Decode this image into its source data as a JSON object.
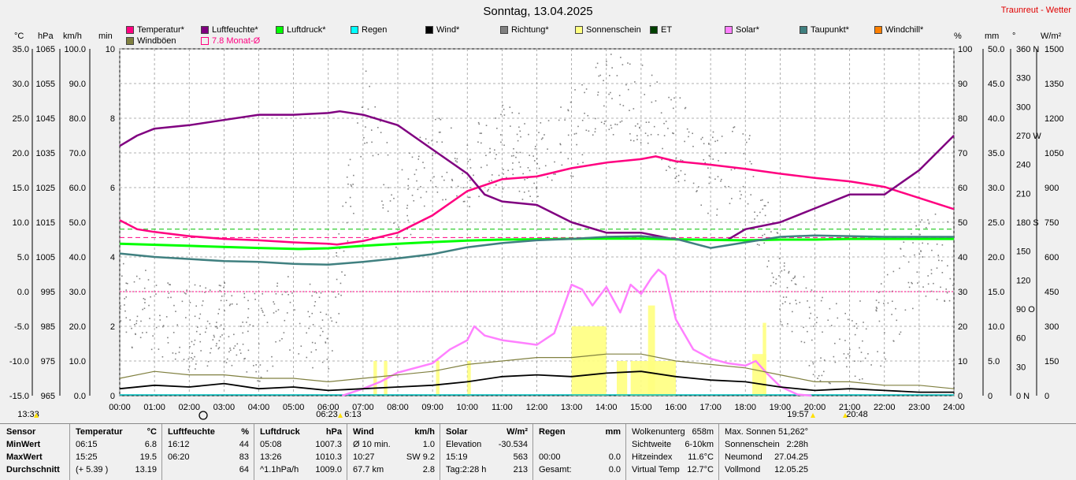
{
  "title": "Sonntag, 13.04.2025",
  "brand": "Traunreut - Wetter",
  "legend": [
    {
      "label": "Temperatur*",
      "color": "#ff0080"
    },
    {
      "label": "Luftfeuchte*",
      "color": "#800080"
    },
    {
      "label": "Luftdruck*",
      "color": "#00ff00"
    },
    {
      "label": "Regen",
      "color": "#00ffff"
    },
    {
      "label": "Wind*",
      "color": "#000000"
    },
    {
      "label": "Richtung*",
      "color": "#808080"
    },
    {
      "label": "Sonnenschein",
      "color": "#ffff80"
    },
    {
      "label": "ET",
      "color": "#004000"
    },
    {
      "label": "Solar*",
      "color": "#ff80ff"
    },
    {
      "label": "Taupunkt*",
      "color": "#408080"
    },
    {
      "label": "Windchill*",
      "color": "#ff8000"
    },
    {
      "label": "Windböen",
      "color": "#808040"
    },
    {
      "label": "7.8 Monat-Ø",
      "color": "#ff0080"
    }
  ],
  "units_left": [
    "°C",
    "hPa",
    "km/h",
    "min"
  ],
  "units_right": [
    "%",
    "mm",
    "°",
    "W/m²"
  ],
  "chart_data": {
    "type": "line",
    "x_unit": "hour",
    "x_range": [
      0,
      24
    ],
    "x_ticks": [
      "00:00",
      "01:00",
      "02:00",
      "03:00",
      "04:00",
      "05:00",
      "06:00",
      "07:00",
      "08:00",
      "09:00",
      "10:00",
      "11:00",
      "12:00",
      "13:00",
      "14:00",
      "15:00",
      "16:00",
      "17:00",
      "18:00",
      "19:00",
      "20:00",
      "21:00",
      "22:00",
      "23:00",
      "24:00"
    ],
    "axes": {
      "temperature": {
        "unit": "°C",
        "range": [
          -15,
          35
        ],
        "ticks": [
          "35.0",
          "30.0",
          "25.0",
          "20.0",
          "15.0",
          "10.0",
          "5.0",
          "0.0",
          "-5.0",
          "-10.0",
          "-15.0"
        ]
      },
      "pressure": {
        "unit": "hPa",
        "range": [
          965,
          1065
        ],
        "ticks": [
          "1065",
          "1055",
          "1045",
          "1035",
          "1025",
          "1015",
          "1005",
          "995",
          "985",
          "975",
          "965"
        ]
      },
      "wind": {
        "unit": "km/h",
        "range": [
          0,
          100
        ],
        "ticks": [
          "100.0",
          "90.0",
          "80.0",
          "70.0",
          "60.0",
          "50.0",
          "40.0",
          "30.0",
          "20.0",
          "10.0",
          "0.0"
        ]
      },
      "sunshine": {
        "unit": "min",
        "range": [
          0,
          10
        ],
        "ticks": [
          "10",
          "",
          "8",
          "",
          "6",
          "",
          "4",
          "",
          "2",
          "",
          "0"
        ]
      },
      "humidity": {
        "unit": "%",
        "range": [
          0,
          100
        ],
        "ticks": [
          "100",
          "90",
          "80",
          "70",
          "60",
          "50",
          "40",
          "30",
          "20",
          "10",
          "0"
        ]
      },
      "rain": {
        "unit": "mm",
        "range": [
          0,
          50
        ],
        "ticks": [
          "50.0",
          "45.0",
          "40.0",
          "35.0",
          "30.0",
          "25.0",
          "20.0",
          "15.0",
          "10.0",
          "5.0",
          "0"
        ]
      },
      "direction": {
        "unit": "°",
        "range": [
          0,
          360
        ],
        "ticks": [
          "360 N",
          "330",
          "300",
          "270 W",
          "240",
          "210",
          "180 S",
          "150",
          "120",
          "90 O",
          "60",
          "30",
          "0 N"
        ]
      },
      "solar": {
        "unit": "W/m²",
        "range": [
          0,
          1500
        ],
        "ticks": [
          "1500",
          "1350",
          "1200",
          "1050",
          "900",
          "750",
          "600",
          "450",
          "300",
          "150",
          "0"
        ]
      }
    },
    "series": [
      {
        "name": "Temperatur*",
        "axis": "temperature",
        "color": "#ff0080",
        "points": [
          [
            0,
            10.3
          ],
          [
            0.5,
            9.0
          ],
          [
            1,
            8.6
          ],
          [
            2,
            8.0
          ],
          [
            3,
            7.6
          ],
          [
            4,
            7.4
          ],
          [
            5,
            7.1
          ],
          [
            6,
            6.9
          ],
          [
            6.25,
            6.8
          ],
          [
            7,
            7.3
          ],
          [
            8,
            8.5
          ],
          [
            9,
            11.0
          ],
          [
            10,
            14.5
          ],
          [
            11,
            16.2
          ],
          [
            12,
            16.6
          ],
          [
            13,
            17.8
          ],
          [
            14,
            18.6
          ],
          [
            15,
            19.1
          ],
          [
            15.42,
            19.5
          ],
          [
            16,
            18.8
          ],
          [
            17,
            18.3
          ],
          [
            18,
            17.7
          ],
          [
            19,
            17.0
          ],
          [
            20,
            16.4
          ],
          [
            21,
            15.9
          ],
          [
            22,
            15.1
          ],
          [
            23,
            13.5
          ],
          [
            24,
            11.9
          ]
        ]
      },
      {
        "name": "Luftfeuchte*",
        "axis": "humidity",
        "color": "#800080",
        "points": [
          [
            0,
            72
          ],
          [
            0.5,
            75
          ],
          [
            1,
            77
          ],
          [
            2,
            78
          ],
          [
            3,
            79.5
          ],
          [
            4,
            81
          ],
          [
            5,
            81
          ],
          [
            6,
            81.5
          ],
          [
            6.33,
            82
          ],
          [
            7,
            81
          ],
          [
            8,
            78
          ],
          [
            9,
            71
          ],
          [
            10,
            64
          ],
          [
            10.5,
            58
          ],
          [
            11,
            56
          ],
          [
            12,
            55
          ],
          [
            13,
            50
          ],
          [
            14,
            47
          ],
          [
            15,
            47
          ],
          [
            16,
            45
          ],
          [
            17,
            45
          ],
          [
            17.5,
            45
          ],
          [
            18,
            48
          ],
          [
            19,
            50
          ],
          [
            20,
            54
          ],
          [
            21,
            58
          ],
          [
            22,
            58
          ],
          [
            23,
            65
          ],
          [
            24,
            75
          ]
        ]
      },
      {
        "name": "Luftdruck*",
        "axis": "pressure",
        "color": "#00ff00",
        "points": [
          [
            0,
            1008.8
          ],
          [
            2,
            1008.2
          ],
          [
            4,
            1007.6
          ],
          [
            5.13,
            1007.3
          ],
          [
            6,
            1007.5
          ],
          [
            7,
            1008.2
          ],
          [
            8,
            1008.8
          ],
          [
            9,
            1009.3
          ],
          [
            10,
            1009.7
          ],
          [
            11,
            1010.0
          ],
          [
            12,
            1010.1
          ],
          [
            13.43,
            1010.3
          ],
          [
            14,
            1010.3
          ],
          [
            15,
            1010.3
          ],
          [
            16,
            1010.1
          ],
          [
            17,
            1009.9
          ],
          [
            18,
            1009.8
          ],
          [
            19,
            1010.0
          ],
          [
            20,
            1010.0
          ],
          [
            21,
            1010.2
          ],
          [
            22,
            1010.2
          ],
          [
            23,
            1010.2
          ],
          [
            24,
            1010.2
          ]
        ]
      },
      {
        "name": "Taupunkt*",
        "axis": "temperature",
        "color": "#408080",
        "points": [
          [
            0,
            5.5
          ],
          [
            1,
            5.0
          ],
          [
            2,
            4.7
          ],
          [
            3,
            4.4
          ],
          [
            4,
            4.3
          ],
          [
            5,
            4.0
          ],
          [
            6,
            3.9
          ],
          [
            7,
            4.3
          ],
          [
            8,
            4.8
          ],
          [
            9,
            5.4
          ],
          [
            10,
            6.4
          ],
          [
            11,
            7.0
          ],
          [
            12,
            7.4
          ],
          [
            13,
            7.6
          ],
          [
            14,
            7.9
          ],
          [
            15,
            8.0
          ],
          [
            16,
            7.6
          ],
          [
            17,
            6.3
          ],
          [
            18,
            7.1
          ],
          [
            19,
            7.9
          ],
          [
            20,
            8.1
          ],
          [
            21,
            8.0
          ],
          [
            22,
            7.9
          ],
          [
            23,
            7.9
          ],
          [
            24,
            7.9
          ]
        ]
      },
      {
        "name": "Solar*",
        "axis": "solar",
        "color": "#ff80ff",
        "points": [
          [
            6.4,
            0
          ],
          [
            7,
            30
          ],
          [
            7.5,
            60
          ],
          [
            8,
            100
          ],
          [
            8.5,
            120
          ],
          [
            9,
            140
          ],
          [
            9.5,
            200
          ],
          [
            10,
            240
          ],
          [
            10.2,
            300
          ],
          [
            10.5,
            260
          ],
          [
            11,
            240
          ],
          [
            11.5,
            230
          ],
          [
            12,
            220
          ],
          [
            12.5,
            270
          ],
          [
            13,
            480
          ],
          [
            13.3,
            460
          ],
          [
            13.6,
            390
          ],
          [
            14,
            470
          ],
          [
            14.4,
            360
          ],
          [
            14.7,
            480
          ],
          [
            15,
            440
          ],
          [
            15.3,
            510
          ],
          [
            15.5,
            545
          ],
          [
            15.7,
            520
          ],
          [
            16,
            330
          ],
          [
            16.5,
            200
          ],
          [
            17,
            160
          ],
          [
            17.5,
            140
          ],
          [
            18,
            130
          ],
          [
            18.3,
            150
          ],
          [
            18.6,
            100
          ],
          [
            19,
            40
          ],
          [
            19.5,
            5
          ],
          [
            19.9,
            0
          ]
        ]
      },
      {
        "name": "Wind*",
        "axis": "wind",
        "color": "#000000",
        "points": [
          [
            0,
            2.0
          ],
          [
            1,
            3.0
          ],
          [
            2,
            2.5
          ],
          [
            3,
            3.5
          ],
          [
            4,
            2.0
          ],
          [
            5,
            2.5
          ],
          [
            6,
            1.5
          ],
          [
            7,
            2.0
          ],
          [
            8,
            2.5
          ],
          [
            9,
            3.0
          ],
          [
            10,
            4.0
          ],
          [
            11,
            5.5
          ],
          [
            12,
            6.0
          ],
          [
            13,
            5.5
          ],
          [
            14,
            6.5
          ],
          [
            15,
            7.0
          ],
          [
            16,
            5.5
          ],
          [
            17,
            4.5
          ],
          [
            18,
            4.0
          ],
          [
            19,
            2.5
          ],
          [
            20,
            1.5
          ],
          [
            21,
            2.0
          ],
          [
            22,
            1.5
          ],
          [
            23,
            1.0
          ],
          [
            24,
            1.0
          ]
        ]
      },
      {
        "name": "Windböen",
        "axis": "wind",
        "color": "#808040",
        "points": [
          [
            0,
            5
          ],
          [
            1,
            7
          ],
          [
            2,
            6
          ],
          [
            3,
            6
          ],
          [
            4,
            5
          ],
          [
            5,
            5
          ],
          [
            6,
            4
          ],
          [
            7,
            5
          ],
          [
            8,
            6
          ],
          [
            9,
            7
          ],
          [
            10,
            9
          ],
          [
            11,
            10
          ],
          [
            12,
            11
          ],
          [
            13,
            11
          ],
          [
            14,
            12
          ],
          [
            15,
            12
          ],
          [
            16,
            10
          ],
          [
            17,
            9
          ],
          [
            18,
            8
          ],
          [
            19,
            6
          ],
          [
            20,
            4
          ],
          [
            21,
            4
          ],
          [
            22,
            3
          ],
          [
            23,
            3
          ],
          [
            24,
            2
          ]
        ]
      }
    ],
    "reference_lines": [
      {
        "label": "7.8 Monat-Ø",
        "axis": "temperature",
        "value": 7.8,
        "color": "#ff0080"
      },
      {
        "axis": "temperature",
        "value": 9.0,
        "color": "#00c000"
      },
      {
        "axis": "temperature",
        "value": 0.0,
        "color": "#ff0080"
      }
    ],
    "sunshine_bars": {
      "axis": "sunshine",
      "color": "#ffff80",
      "ranges": [
        [
          7.3,
          7.4,
          1.0
        ],
        [
          7.6,
          7.7,
          1.0
        ],
        [
          9.1,
          9.2,
          1.0
        ],
        [
          10.0,
          10.1,
          1.0
        ],
        [
          13.0,
          14.0,
          2.0
        ],
        [
          14.3,
          14.6,
          1.0
        ],
        [
          14.7,
          16.0,
          1.0
        ],
        [
          15.2,
          15.4,
          2.6
        ],
        [
          18.2,
          18.6,
          1.2
        ],
        [
          18.5,
          18.6,
          2.1
        ]
      ]
    },
    "direction_scatter": {
      "axis": "direction",
      "color": "#808080"
    },
    "time_markers": [
      "13:33",
      "06:23",
      "6:13",
      "19:57",
      "20:48"
    ]
  },
  "stats": {
    "sensor": {
      "head": "Sensor",
      "rows": [
        "MinWert",
        "MaxWert",
        "Durchschnitt"
      ]
    },
    "temperatur": {
      "head": "Temperatur",
      "unit": "°C",
      "rows": [
        [
          "06:15",
          "6.8"
        ],
        [
          "15:25",
          "19.5"
        ],
        [
          "(+ 5.39 )",
          "13.19"
        ]
      ]
    },
    "luftfeuchte": {
      "head": "Luftfeuchte",
      "unit": "%",
      "rows": [
        [
          "16:12",
          "44"
        ],
        [
          "06:20",
          "83"
        ],
        [
          "",
          "64"
        ]
      ]
    },
    "luftdruck": {
      "head": "Luftdruck",
      "unit": "hPa",
      "rows": [
        [
          "05:08",
          "1007.3"
        ],
        [
          "13:26",
          "1010.3"
        ],
        [
          "^1.1hPa/h",
          "1009.0"
        ]
      ]
    },
    "wind": {
      "head": "Wind",
      "unit": "km/h",
      "rows": [
        [
          "Ø 10 min.",
          "1.0"
        ],
        [
          "10:27",
          "SW 9.2"
        ],
        [
          "67.7 km",
          "2.8"
        ]
      ]
    },
    "solar": {
      "head": "Solar",
      "unit": "W/m²",
      "rows": [
        [
          "Elevation",
          "-30.534"
        ],
        [
          "15:19",
          "563"
        ],
        [
          "Tag:2:28 h",
          "213"
        ]
      ]
    },
    "regen": {
      "head": "Regen",
      "unit": "mm",
      "rows": [
        [
          "",
          ""
        ],
        [
          "00:00",
          "0.0"
        ],
        [
          "Gesamt:",
          "0.0"
        ]
      ]
    },
    "misc1": [
      [
        "Wolkenunterg",
        "658m"
      ],
      [
        "Sichtweite",
        "6-10km"
      ],
      [
        "Hitzeindex",
        "11.6°C"
      ],
      [
        "Virtual Temp",
        "12.7°C"
      ]
    ],
    "misc2": [
      [
        "Max. Sonnen",
        "51,262°"
      ],
      [
        "Sonnenschein",
        "2:28h"
      ],
      [
        "Neumond",
        "27.04.25"
      ],
      [
        "Vollmond",
        "12.05.25"
      ]
    ]
  }
}
